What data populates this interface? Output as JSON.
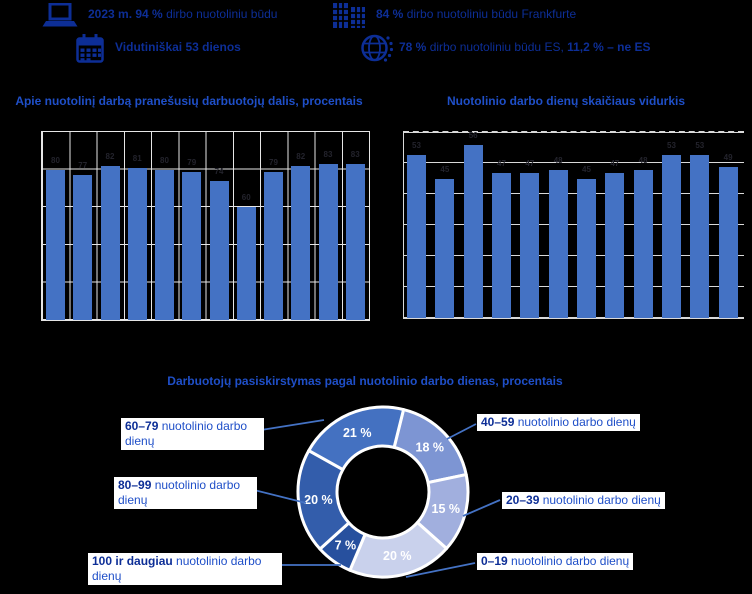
{
  "page": {
    "background": "#000000"
  },
  "colors": {
    "bar": "#4472c4",
    "header_text": "#0d2e96",
    "title_text": "#1f4fc8",
    "grid_left": "#e6e6e6",
    "grid_right": "#d9d9d9",
    "leader_line": "#4472c4",
    "callout_background": "#ffffff"
  },
  "header": {
    "stats": [
      {
        "icon": "laptop-icon",
        "segments": [
          {
            "text": "2023 m. 94 % ",
            "bold": true
          },
          {
            "text": "dirbo nuotoliniu būdu",
            "bold": false
          }
        ]
      },
      {
        "icon": "building-icon",
        "segments": [
          {
            "text": "84 % ",
            "bold": true
          },
          {
            "text": "dirbo nuotoliniu būdu Frankfurte",
            "bold": false
          }
        ]
      },
      {
        "icon": "calendar-icon",
        "segments": [
          {
            "text": "Vidutiniškai 53 dienos",
            "bold": true
          }
        ]
      },
      {
        "icon": "globe-eu-icon",
        "segments": [
          {
            "text": "78 % ",
            "bold": true
          },
          {
            "text": "dirbo nuotoliniu būdu ES, ",
            "bold": false
          },
          {
            "text": "11,2 % – ne ES",
            "bold": true
          }
        ]
      }
    ]
  },
  "chart_data": [
    {
      "type": "bar",
      "title": "Apie nuotolinį darbą pranešusių darbuotojų dalis, procentais",
      "values": [
        80,
        77,
        82,
        81,
        80,
        79,
        74,
        60,
        79,
        82,
        83,
        83
      ],
      "xlabel": "",
      "ylabel": "",
      "ylim": [
        0,
        100
      ],
      "gridline_step": 20,
      "grid": "horizontal-and-vertical",
      "bar_color": "#4472c4",
      "tick_labels_visible": false,
      "data_labels": "dark, barely visible against black background"
    },
    {
      "type": "bar",
      "title": "Nuotolinio darbo dienų skaičiaus vidurkis",
      "values": [
        53,
        45,
        56,
        47,
        47,
        48,
        45,
        47,
        48,
        53,
        53,
        49
      ],
      "xlabel": "",
      "ylabel": "",
      "ylim": [
        0,
        60
      ],
      "gridline_step": 10,
      "grid": "horizontal",
      "top_gridline_style": "dashed",
      "bar_color": "#4472c4",
      "tick_labels_visible": false,
      "data_labels": "dark, barely visible against black background"
    },
    {
      "type": "pie",
      "subtype": "donut",
      "title": "Darbuotojų pasiskirstymas pagal nuotolinio darbo dienas, procentais",
      "start_angle": 14,
      "segments": [
        {
          "range_bold": "40–59",
          "rest": " nuotolinio darbo dienų",
          "value": 18,
          "display": "18 %",
          "color": "#7d95d3"
        },
        {
          "range_bold": "20–39",
          "rest": " nuotolinio darbo dienų",
          "value": 15,
          "display": "15 %",
          "color": "#a1afde"
        },
        {
          "range_bold": "0–19",
          "rest": " nuotolinio darbo dienų",
          "value": 20,
          "display": "20 %",
          "color": "#c9d1ec"
        },
        {
          "range_bold": "100 ir daugiau",
          "rest": " nuotolinio darbo dienų",
          "value": 7,
          "display": "7 %",
          "color": "#27509e"
        },
        {
          "range_bold": "80–99",
          "rest": " nuotolinio darbo dienų",
          "value": 20,
          "display": "20 %",
          "color": "#335dab"
        },
        {
          "range_bold": "60–79",
          "rest": " nuotolinio darbo dienų",
          "value": 21,
          "display": "21 %",
          "color": "#4471c1"
        }
      ]
    }
  ]
}
